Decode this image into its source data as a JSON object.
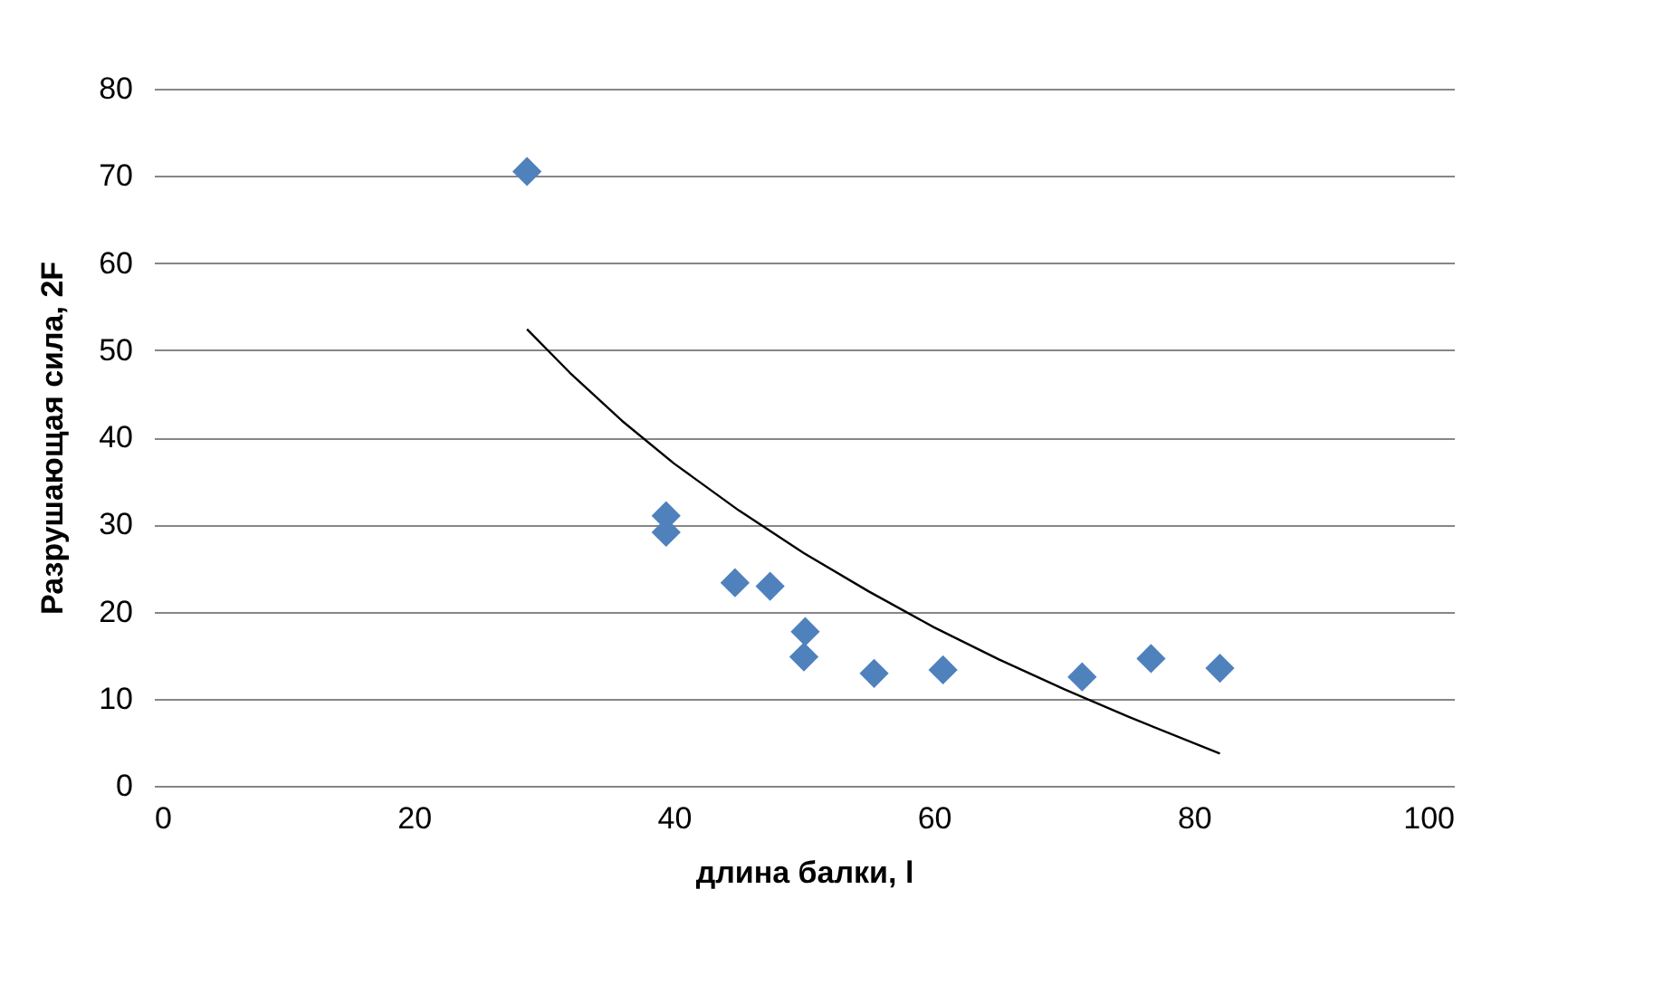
{
  "chart_data": {
    "type": "scatter",
    "xlabel": "длина балки, l",
    "ylabel": "Разрушающая сила, 2F",
    "xlim": [
      0,
      100
    ],
    "xticks": [
      0,
      20,
      40,
      60,
      80,
      100
    ],
    "ylim": [
      0,
      80
    ],
    "yticks": [
      0,
      10,
      20,
      30,
      40,
      50,
      60,
      70,
      80
    ],
    "grid": "y",
    "marker": "diamond",
    "series": [
      {
        "color": "#4f81bd",
        "x": [
          28.7,
          39.4,
          39.4,
          44.7,
          47.4,
          50.1,
          50.0,
          55.4,
          60.7,
          71.4,
          76.7,
          82.0
        ],
        "values": [
          70.5,
          31.0,
          29.1,
          23.3,
          22.9,
          17.7,
          14.8,
          12.9,
          13.3,
          12.5,
          14.6,
          13.5
        ]
      },
      {
        "type": "line",
        "color": "#000000",
        "marker": "none",
        "x": [
          28.7,
          32,
          36,
          40,
          45,
          50,
          55,
          60,
          65,
          70,
          75,
          82
        ],
        "values": [
          52.4,
          47.4,
          41.9,
          37.0,
          31.6,
          26.7,
          22.3,
          18.2,
          14.5,
          11.1,
          7.9,
          3.7
        ]
      }
    ]
  }
}
